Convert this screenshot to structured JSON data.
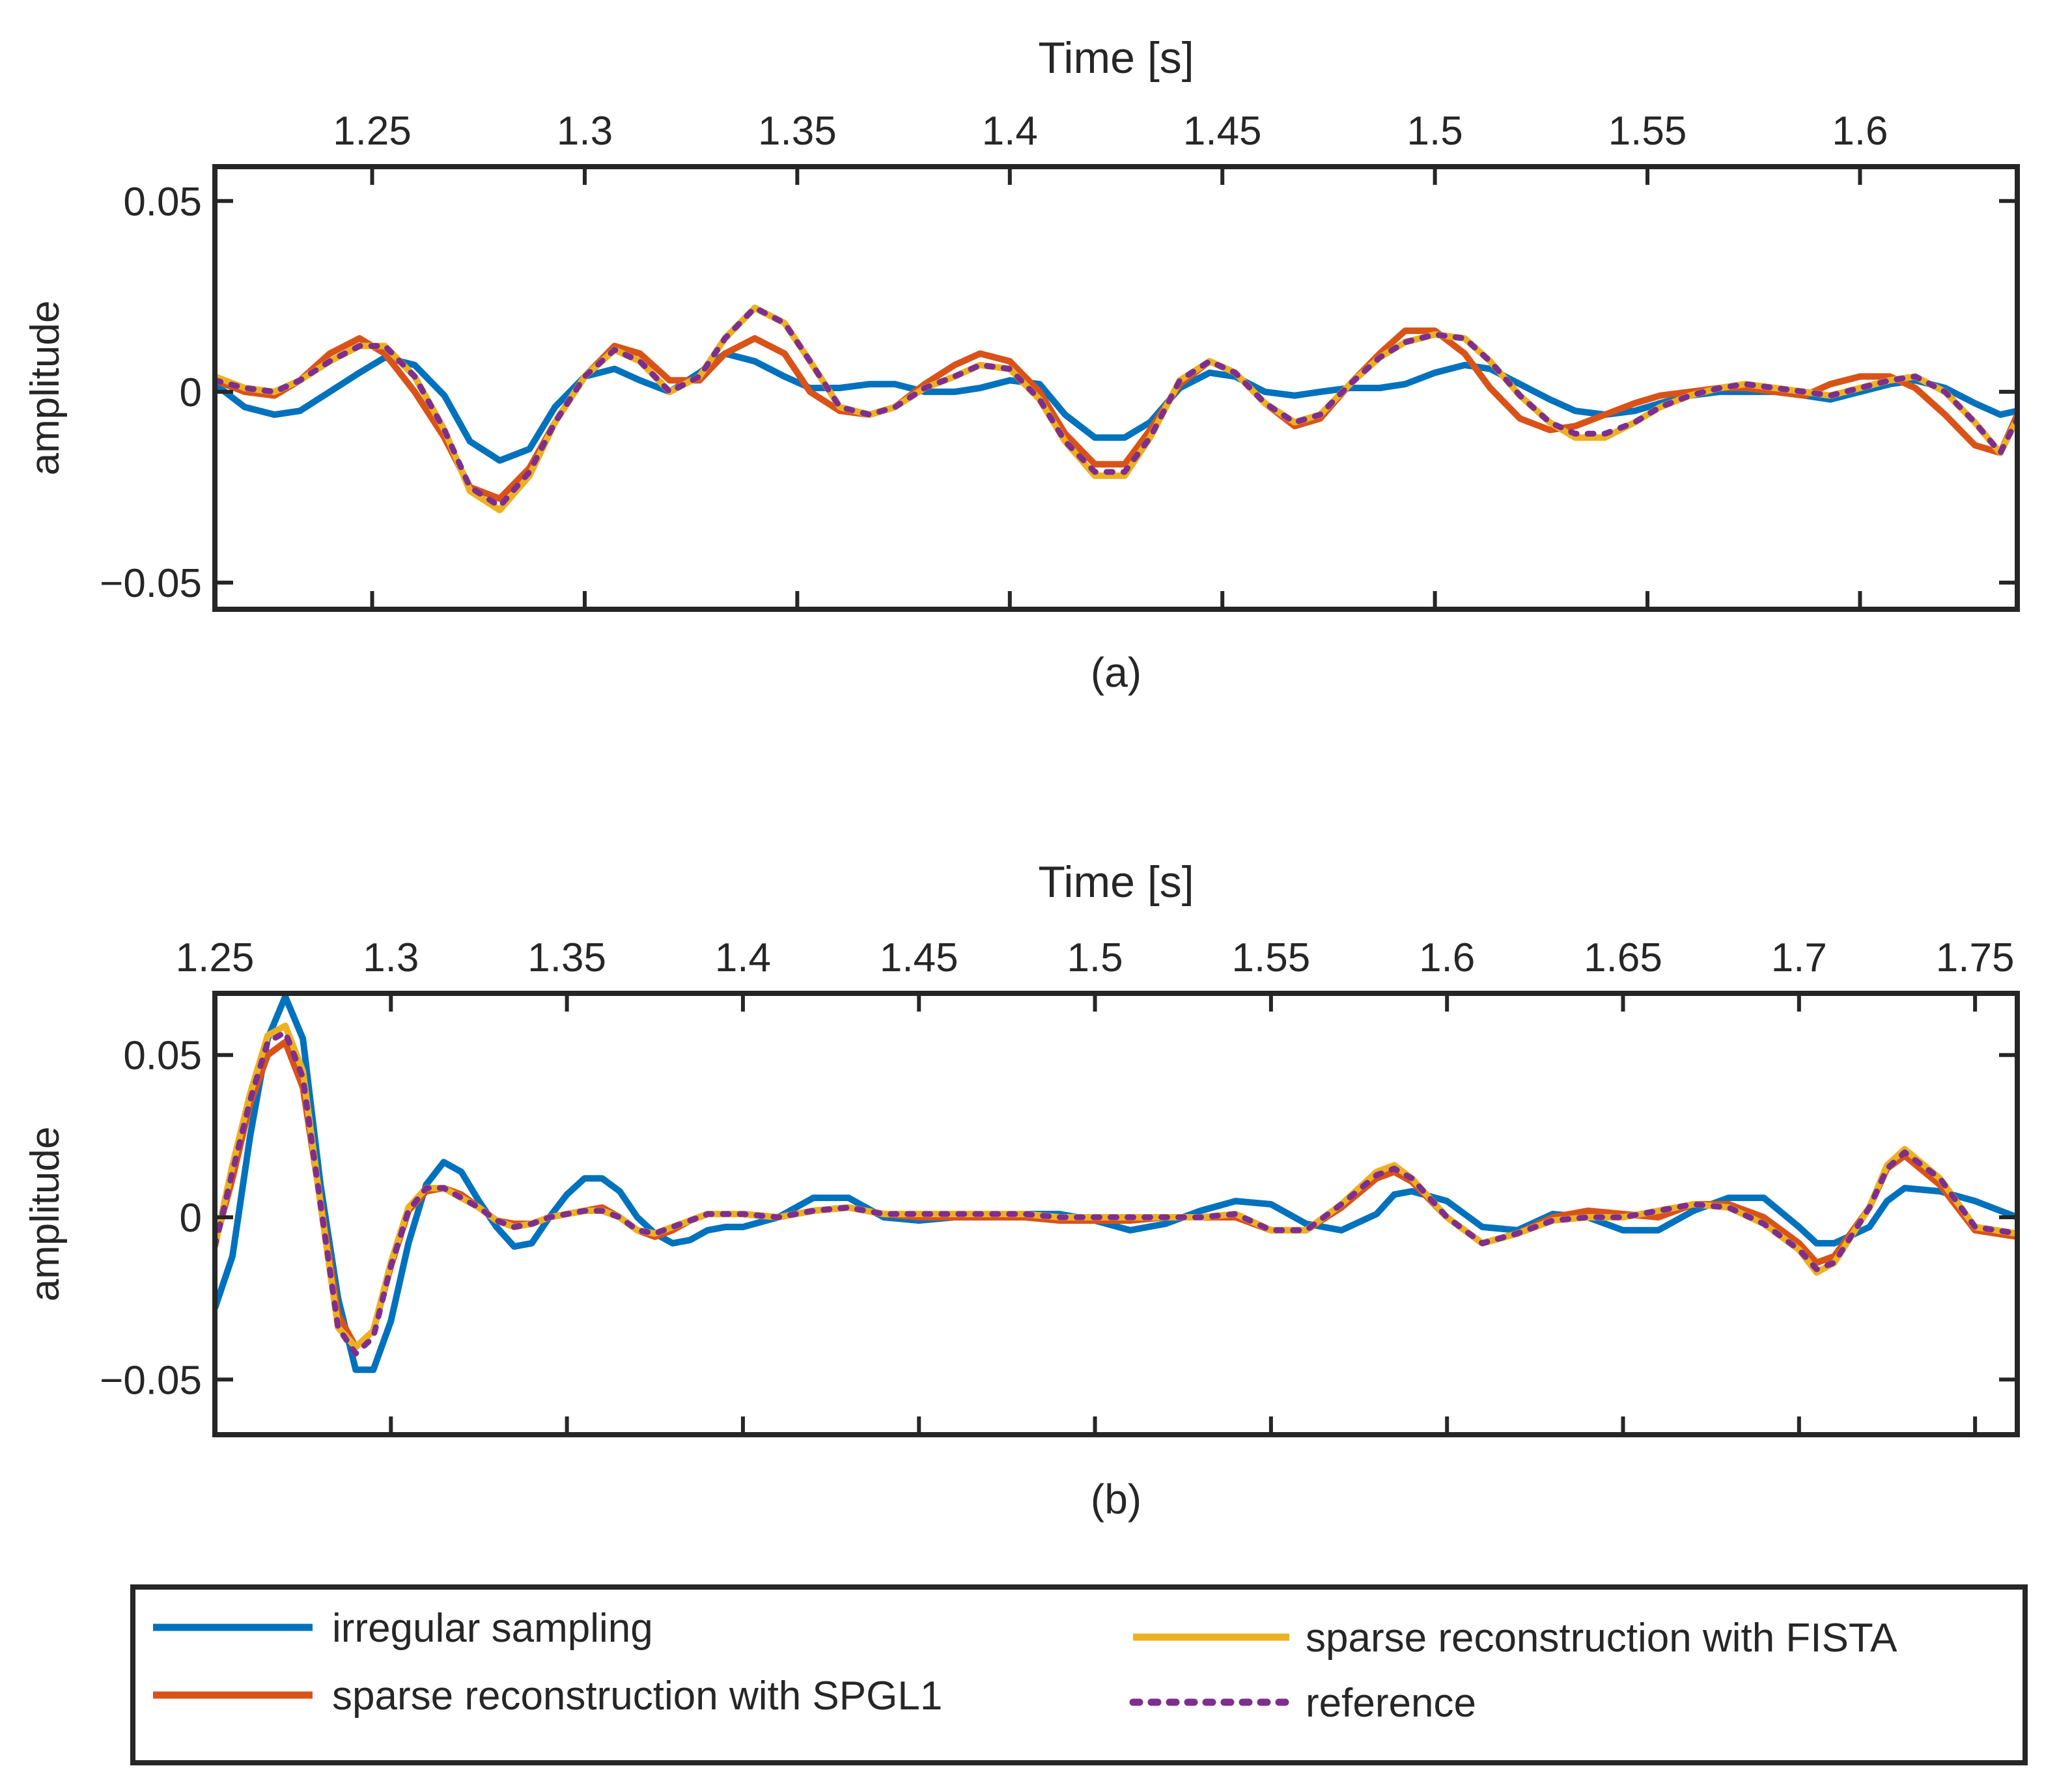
{
  "colors": {
    "irregular": "#0072BD",
    "spgl1": "#D95319",
    "fista": "#EDB120",
    "reference": "#7E2F8E",
    "axes": "#262626"
  },
  "legend": {
    "entries": [
      {
        "label": "irregular sampling",
        "color": "#0072BD",
        "style": "solid"
      },
      {
        "label": "sparse reconstruction with SPGL1",
        "color": "#D95319",
        "style": "solid"
      },
      {
        "label": "sparse reconstruction with FISTA",
        "color": "#EDB120",
        "style": "solid"
      },
      {
        "label": "reference",
        "color": "#7E2F8E",
        "style": "dotted"
      }
    ]
  },
  "chart_data": [
    {
      "type": "line",
      "panel_label": "(a)",
      "xlabel": "Time [s]",
      "ylabel": "amplitude",
      "xlim": [
        1.213,
        1.637
      ],
      "ylim": [
        -0.057,
        0.059
      ],
      "xticks": [
        1.25,
        1.3,
        1.35,
        1.4,
        1.45,
        1.5,
        1.55,
        1.6
      ],
      "xtick_labels": [
        "1.25",
        "1.3",
        "1.35",
        "1.4",
        "1.45",
        "1.5",
        "1.55",
        "1.6"
      ],
      "yticks": [
        -0.05,
        0,
        0.05
      ],
      "ytick_labels": [
        "−0.05",
        "0",
        "0.05"
      ],
      "x": [
        1.213,
        1.22,
        1.227,
        1.233,
        1.24,
        1.247,
        1.253,
        1.26,
        1.267,
        1.273,
        1.28,
        1.287,
        1.293,
        1.3,
        1.307,
        1.313,
        1.32,
        1.327,
        1.333,
        1.34,
        1.347,
        1.353,
        1.36,
        1.367,
        1.373,
        1.38,
        1.387,
        1.393,
        1.4,
        1.407,
        1.413,
        1.42,
        1.427,
        1.433,
        1.44,
        1.447,
        1.453,
        1.46,
        1.467,
        1.473,
        1.48,
        1.487,
        1.493,
        1.5,
        1.507,
        1.513,
        1.52,
        1.527,
        1.533,
        1.54,
        1.547,
        1.553,
        1.56,
        1.567,
        1.573,
        1.58,
        1.587,
        1.593,
        1.6,
        1.607,
        1.613,
        1.62,
        1.627,
        1.633,
        1.637
      ],
      "series": [
        {
          "name": "irregular sampling",
          "color": "#0072BD",
          "style": "solid",
          "values": [
            0.002,
            -0.004,
            -0.006,
            -0.005,
            0.0,
            0.005,
            0.009,
            0.007,
            -0.001,
            -0.013,
            -0.018,
            -0.015,
            -0.004,
            0.004,
            0.006,
            0.003,
            0.0,
            0.005,
            0.01,
            0.008,
            0.004,
            0.001,
            0.001,
            0.002,
            0.002,
            0.0,
            0.0,
            0.001,
            0.003,
            0.002,
            -0.006,
            -0.012,
            -0.012,
            -0.008,
            0.001,
            0.005,
            0.004,
            0.0,
            -0.001,
            0.0,
            0.001,
            0.001,
            0.002,
            0.005,
            0.007,
            0.006,
            0.002,
            -0.002,
            -0.005,
            -0.006,
            -0.005,
            -0.003,
            -0.001,
            0.0,
            0.0,
            0.0,
            -0.001,
            -0.002,
            0.0,
            0.002,
            0.003,
            0.001,
            -0.003,
            -0.006,
            -0.005
          ]
        },
        {
          "name": "sparse reconstruction with SPGL1",
          "color": "#D95319",
          "style": "solid",
          "values": [
            0.003,
            0.0,
            -0.001,
            0.003,
            0.01,
            0.014,
            0.01,
            0.0,
            -0.012,
            -0.025,
            -0.028,
            -0.02,
            -0.008,
            0.004,
            0.012,
            0.01,
            0.003,
            0.003,
            0.01,
            0.014,
            0.01,
            0.0,
            -0.005,
            -0.006,
            -0.004,
            0.002,
            0.007,
            0.01,
            0.008,
            0.0,
            -0.011,
            -0.019,
            -0.019,
            -0.01,
            0.002,
            0.008,
            0.005,
            -0.003,
            -0.009,
            -0.007,
            0.002,
            0.01,
            0.016,
            0.016,
            0.01,
            0.001,
            -0.007,
            -0.01,
            -0.009,
            -0.006,
            -0.003,
            -0.001,
            0.0,
            0.001,
            0.001,
            0.0,
            -0.001,
            0.002,
            0.004,
            0.004,
            0.001,
            -0.006,
            -0.014,
            -0.016,
            -0.006
          ]
        },
        {
          "name": "sparse reconstruction with FISTA",
          "color": "#EDB120",
          "style": "solid",
          "values": [
            0.004,
            0.001,
            0.0,
            0.003,
            0.008,
            0.012,
            0.012,
            0.004,
            -0.01,
            -0.026,
            -0.031,
            -0.022,
            -0.008,
            0.004,
            0.011,
            0.008,
            0.0,
            0.004,
            0.014,
            0.022,
            0.018,
            0.008,
            -0.004,
            -0.006,
            -0.004,
            0.001,
            0.004,
            0.007,
            0.006,
            -0.002,
            -0.013,
            -0.022,
            -0.022,
            -0.012,
            0.003,
            0.008,
            0.005,
            -0.003,
            -0.008,
            -0.006,
            0.002,
            0.009,
            0.013,
            0.015,
            0.014,
            0.008,
            -0.001,
            -0.008,
            -0.012,
            -0.012,
            -0.008,
            -0.004,
            -0.001,
            0.001,
            0.002,
            0.001,
            0.0,
            -0.001,
            0.001,
            0.003,
            0.004,
            0.0,
            -0.008,
            -0.016,
            -0.007
          ]
        },
        {
          "name": "reference",
          "color": "#7E2F8E",
          "style": "dotted",
          "values": [
            0.003,
            0.001,
            0.0,
            0.003,
            0.008,
            0.012,
            0.012,
            0.004,
            -0.01,
            -0.025,
            -0.03,
            -0.021,
            -0.008,
            0.004,
            0.011,
            0.008,
            0.0,
            0.004,
            0.014,
            0.022,
            0.018,
            0.008,
            -0.004,
            -0.006,
            -0.004,
            0.001,
            0.004,
            0.007,
            0.006,
            -0.002,
            -0.013,
            -0.021,
            -0.021,
            -0.012,
            0.003,
            0.008,
            0.005,
            -0.003,
            -0.008,
            -0.006,
            0.002,
            0.009,
            0.013,
            0.015,
            0.014,
            0.008,
            -0.001,
            -0.008,
            -0.011,
            -0.011,
            -0.008,
            -0.004,
            -0.001,
            0.001,
            0.002,
            0.001,
            0.0,
            -0.001,
            0.001,
            0.003,
            0.004,
            0.0,
            -0.008,
            -0.016,
            -0.007
          ]
        }
      ]
    },
    {
      "type": "line",
      "panel_label": "(b)",
      "xlabel": "Time [s]",
      "ylabel": "amplitude",
      "xlim": [
        1.25,
        1.762
      ],
      "ylim": [
        -0.067,
        0.069
      ],
      "xticks": [
        1.25,
        1.3,
        1.35,
        1.4,
        1.45,
        1.5,
        1.55,
        1.6,
        1.65,
        1.7,
        1.75
      ],
      "xtick_labels": [
        "1.25",
        "1.3",
        "1.35",
        "1.4",
        "1.45",
        "1.5",
        "1.55",
        "1.6",
        "1.65",
        "1.7",
        "1.75"
      ],
      "yticks": [
        -0.05,
        0,
        0.05
      ],
      "ytick_labels": [
        "−0.05",
        "0",
        "0.05"
      ],
      "x": [
        1.25,
        1.255,
        1.26,
        1.265,
        1.27,
        1.275,
        1.28,
        1.285,
        1.29,
        1.295,
        1.3,
        1.305,
        1.31,
        1.315,
        1.32,
        1.325,
        1.33,
        1.335,
        1.34,
        1.345,
        1.35,
        1.355,
        1.36,
        1.365,
        1.37,
        1.375,
        1.38,
        1.385,
        1.39,
        1.395,
        1.4,
        1.41,
        1.42,
        1.43,
        1.44,
        1.45,
        1.46,
        1.47,
        1.48,
        1.49,
        1.5,
        1.51,
        1.52,
        1.53,
        1.54,
        1.55,
        1.56,
        1.57,
        1.58,
        1.585,
        1.59,
        1.6,
        1.61,
        1.62,
        1.63,
        1.64,
        1.65,
        1.66,
        1.67,
        1.68,
        1.69,
        1.7,
        1.705,
        1.71,
        1.72,
        1.725,
        1.73,
        1.74,
        1.75,
        1.762
      ],
      "series": [
        {
          "name": "irregular sampling",
          "color": "#0072BD",
          "style": "solid",
          "values": [
            -0.028,
            -0.012,
            0.025,
            0.055,
            0.068,
            0.055,
            0.01,
            -0.025,
            -0.047,
            -0.047,
            -0.032,
            -0.008,
            0.01,
            0.017,
            0.014,
            0.005,
            -0.003,
            -0.009,
            -0.008,
            0.0,
            0.007,
            0.012,
            0.012,
            0.008,
            0.0,
            -0.005,
            -0.008,
            -0.007,
            -0.004,
            -0.003,
            -0.003,
            0.0,
            0.006,
            0.006,
            0.0,
            -0.001,
            0.0,
            0.001,
            0.001,
            0.001,
            -0.001,
            -0.004,
            -0.002,
            0.002,
            0.005,
            0.004,
            -0.002,
            -0.004,
            0.001,
            0.007,
            0.008,
            0.005,
            -0.003,
            -0.004,
            0.001,
            0.0,
            -0.004,
            -0.004,
            0.002,
            0.006,
            0.006,
            -0.003,
            -0.008,
            -0.008,
            -0.003,
            0.005,
            0.009,
            0.008,
            0.005,
            0.0
          ]
        },
        {
          "name": "sparse reconstruction with SPGL1",
          "color": "#D95319",
          "style": "solid",
          "values": [
            -0.008,
            0.012,
            0.035,
            0.05,
            0.054,
            0.04,
            0.005,
            -0.03,
            -0.04,
            -0.035,
            -0.015,
            0.002,
            0.008,
            0.009,
            0.007,
            0.003,
            -0.001,
            -0.002,
            -0.002,
            0.0,
            0.001,
            0.002,
            0.003,
            0.0,
            -0.004,
            -0.006,
            -0.004,
            -0.001,
            0.001,
            0.001,
            0.001,
            0.0,
            0.002,
            0.003,
            0.001,
            0.0,
            0.0,
            0.0,
            0.0,
            -0.001,
            -0.001,
            -0.001,
            0.0,
            0.0,
            0.0,
            -0.004,
            -0.004,
            0.003,
            0.012,
            0.014,
            0.011,
            0.0,
            -0.008,
            -0.005,
            0.0,
            0.002,
            0.001,
            0.0,
            0.004,
            0.004,
            0.0,
            -0.008,
            -0.014,
            -0.012,
            0.003,
            0.015,
            0.019,
            0.01,
            -0.004,
            -0.006
          ]
        },
        {
          "name": "sparse reconstruction with FISTA",
          "color": "#EDB120",
          "style": "solid",
          "values": [
            -0.009,
            0.016,
            0.038,
            0.056,
            0.059,
            0.045,
            0.004,
            -0.034,
            -0.04,
            -0.035,
            -0.014,
            0.003,
            0.009,
            0.009,
            0.006,
            0.003,
            -0.001,
            -0.003,
            -0.002,
            0.0,
            0.001,
            0.002,
            0.002,
            0.0,
            -0.004,
            -0.005,
            -0.003,
            -0.001,
            0.001,
            0.001,
            0.001,
            0.0,
            0.002,
            0.003,
            0.001,
            0.001,
            0.001,
            0.001,
            0.001,
            0.0,
            0.0,
            0.0,
            0.0,
            0.0,
            0.001,
            -0.004,
            -0.004,
            0.004,
            0.014,
            0.016,
            0.012,
            0.0,
            -0.008,
            -0.005,
            -0.001,
            0.0,
            0.0,
            0.002,
            0.004,
            0.003,
            -0.002,
            -0.01,
            -0.017,
            -0.014,
            0.003,
            0.016,
            0.021,
            0.012,
            -0.003,
            -0.005
          ]
        },
        {
          "name": "reference",
          "color": "#7E2F8E",
          "style": "dotted",
          "values": [
            -0.009,
            0.014,
            0.036,
            0.054,
            0.057,
            0.043,
            0.004,
            -0.034,
            -0.042,
            -0.037,
            -0.015,
            0.002,
            0.009,
            0.009,
            0.006,
            0.003,
            -0.001,
            -0.003,
            -0.002,
            0.0,
            0.001,
            0.002,
            0.002,
            0.0,
            -0.004,
            -0.005,
            -0.003,
            -0.001,
            0.001,
            0.001,
            0.001,
            0.0,
            0.002,
            0.003,
            0.001,
            0.001,
            0.001,
            0.001,
            0.001,
            0.0,
            0.0,
            0.0,
            0.0,
            0.0,
            0.001,
            -0.004,
            -0.004,
            0.004,
            0.013,
            0.015,
            0.012,
            0.0,
            -0.008,
            -0.005,
            -0.001,
            0.0,
            0.0,
            0.002,
            0.004,
            0.003,
            -0.002,
            -0.01,
            -0.016,
            -0.014,
            0.003,
            0.015,
            0.02,
            0.012,
            -0.003,
            -0.005
          ]
        }
      ]
    }
  ]
}
